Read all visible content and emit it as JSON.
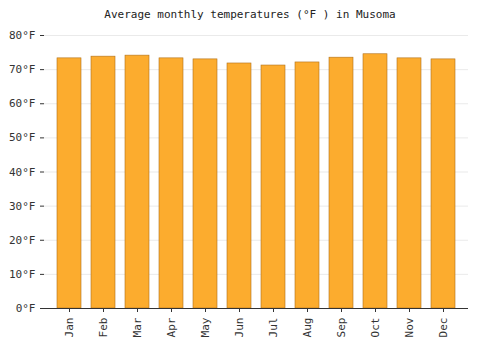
{
  "chart_data": {
    "type": "bar",
    "title": "Average monthly temperatures (°F ) in Musoma",
    "categories": [
      "Jan",
      "Feb",
      "Mar",
      "Apr",
      "May",
      "Jun",
      "Jul",
      "Aug",
      "Sep",
      "Oct",
      "Nov",
      "Dec"
    ],
    "values": [
      73.3,
      73.8,
      74.1,
      73.3,
      73.0,
      71.8,
      71.2,
      72.1,
      73.5,
      74.5,
      73.3,
      73.0
    ],
    "color": "#fcac2e",
    "ylim": [
      0,
      80
    ],
    "yticks": [
      {
        "value": 0,
        "label": "0°F"
      },
      {
        "value": 10,
        "label": "10°F"
      },
      {
        "value": 20,
        "label": "20°F"
      },
      {
        "value": 30,
        "label": "30°F"
      },
      {
        "value": 40,
        "label": "40°F"
      },
      {
        "value": 50,
        "label": "50°F"
      },
      {
        "value": 60,
        "label": "60°F"
      },
      {
        "value": 70,
        "label": "70°F"
      },
      {
        "value": 80,
        "label": "80°F"
      }
    ],
    "grid": true
  }
}
